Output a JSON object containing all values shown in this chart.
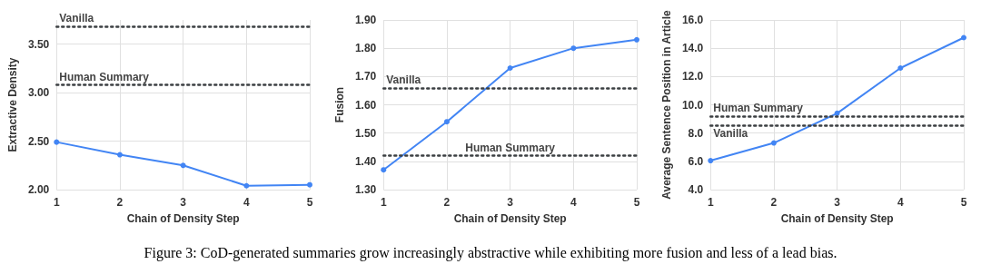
{
  "chart_data": [
    {
      "type": "line",
      "x": [
        1,
        2,
        3,
        4,
        5
      ],
      "xlabel": "Chain of Density Step",
      "ylabel": "Extractive Density",
      "series": [
        {
          "color": "#4285f4",
          "values": [
            2.49,
            2.36,
            2.25,
            2.04,
            2.05
          ]
        }
      ],
      "xlim": [
        1,
        5
      ],
      "xticks": [
        1,
        2,
        3,
        4,
        5
      ],
      "ylim": [
        2.0,
        3.75
      ],
      "yticks": [
        {
          "value": 2.0,
          "label": "2.00"
        },
        {
          "value": 2.5,
          "label": "2.50"
        },
        {
          "value": 3.0,
          "label": "3.00"
        },
        {
          "value": 3.5,
          "label": "3.50"
        }
      ],
      "ref_lines": [
        {
          "axis": "y",
          "value": 3.68,
          "label": "Vanilla",
          "color": "#3c4043",
          "line_style": "dotted"
        },
        {
          "axis": "y",
          "value": 3.08,
          "label": "Human Summary",
          "color": "#3c4043",
          "line_style": "dotted"
        }
      ],
      "grid": true,
      "marker": "circle",
      "line_style": "solid",
      "annotations": [
        "Figure 3: CoD-generated summaries grow increasingly abstractive while exhibiting more fusion and less of a lead bias."
      ]
    },
    {
      "type": "line",
      "x": [
        1,
        2,
        3,
        4,
        5
      ],
      "xlabel": "Chain of Density Step",
      "ylabel": "Fusion",
      "series": [
        {
          "color": "#4285f4",
          "values": [
            1.37,
            1.54,
            1.73,
            1.8,
            1.83
          ]
        }
      ],
      "xlim": [
        1,
        5
      ],
      "xticks": [
        1,
        2,
        3,
        4,
        5
      ],
      "ylim": [
        1.3,
        1.9
      ],
      "yticks": [
        {
          "value": 1.3,
          "label": "1.30"
        },
        {
          "value": 1.4,
          "label": "1.40"
        },
        {
          "value": 1.5,
          "label": "1.50"
        },
        {
          "value": 1.6,
          "label": "1.60"
        },
        {
          "value": 1.7,
          "label": "1.70"
        },
        {
          "value": 1.8,
          "label": "1.80"
        },
        {
          "value": 1.9,
          "label": "1.90"
        }
      ],
      "ref_lines": [
        {
          "axis": "y",
          "value": 1.66,
          "label": "Vanilla",
          "color": "#3c4043",
          "line_style": "dotted"
        },
        {
          "axis": "y",
          "value": 1.42,
          "label": "Human Summary",
          "color": "#3c4043",
          "line_style": "dotted"
        }
      ],
      "grid": true,
      "marker": "circle",
      "line_style": "solid"
    },
    {
      "type": "line",
      "x": [
        1,
        2,
        3,
        4,
        5
      ],
      "xlabel": "Chain of Density Step",
      "ylabel": "Average Sentence Position in Article",
      "series": [
        {
          "color": "#4285f4",
          "values": [
            6.05,
            7.3,
            9.4,
            12.6,
            14.75
          ]
        }
      ],
      "xlim": [
        1,
        5
      ],
      "xticks": [
        1,
        2,
        3,
        4,
        5
      ],
      "ylim": [
        4,
        16
      ],
      "yticks": [
        {
          "value": 4,
          "label": "4.0"
        },
        {
          "value": 6,
          "label": "6.0"
        },
        {
          "value": 8,
          "label": "8.0"
        },
        {
          "value": 10,
          "label": "10.0"
        },
        {
          "value": 12,
          "label": "12.0"
        },
        {
          "value": 14,
          "label": "14.0"
        },
        {
          "value": 16,
          "label": "16.0"
        }
      ],
      "ref_lines": [
        {
          "axis": "y",
          "value": 9.18,
          "label": "Human Summary",
          "color": "#3c4043",
          "line_style": "dotted"
        },
        {
          "axis": "y",
          "value": 8.56,
          "label": "Vanilla",
          "color": "#3c4043",
          "line_style": "dotted"
        }
      ],
      "grid": true,
      "marker": "circle",
      "line_style": "solid"
    }
  ]
}
